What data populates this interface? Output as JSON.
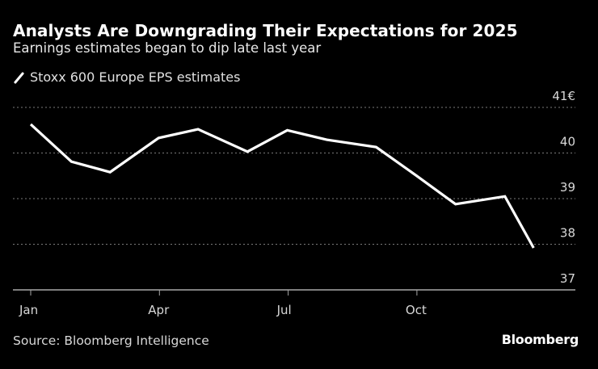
{
  "chart_data": {
    "type": "line",
    "title": "Analysts Are Downgrading Their Expectations for 2025",
    "subtitle": "Earnings estimates began to dip late last year",
    "source": "Source: Bloomberg Intelligence",
    "brand": "Bloomberg",
    "xlabel": "",
    "ylabel": "",
    "x_tick_labels": [
      "Jan",
      "Apr",
      "Jul",
      "Oct"
    ],
    "x_tick_months": [
      0,
      3,
      6,
      9
    ],
    "y_tick_labels": [
      "41€",
      "40",
      "39",
      "38",
      "37"
    ],
    "y_ticks": [
      41,
      40,
      39,
      38,
      37
    ],
    "ylim": [
      37,
      41
    ],
    "xlim_months": [
      0,
      12
    ],
    "grid": true,
    "legend_position": "top-left",
    "series": [
      {
        "name": "Stoxx 600 Europe EPS estimates",
        "color": "#ffffff",
        "x_months": [
          0,
          0.95,
          1.85,
          2.98,
          3.9,
          5.05,
          5.98,
          6.9,
          8.05,
          8.98,
          9.9,
          11.05,
          11.72
        ],
        "values": [
          40.63,
          39.81,
          39.58,
          40.33,
          40.52,
          40.03,
          40.5,
          40.29,
          40.13,
          39.51,
          38.88,
          39.05,
          37.92
        ]
      }
    ]
  }
}
